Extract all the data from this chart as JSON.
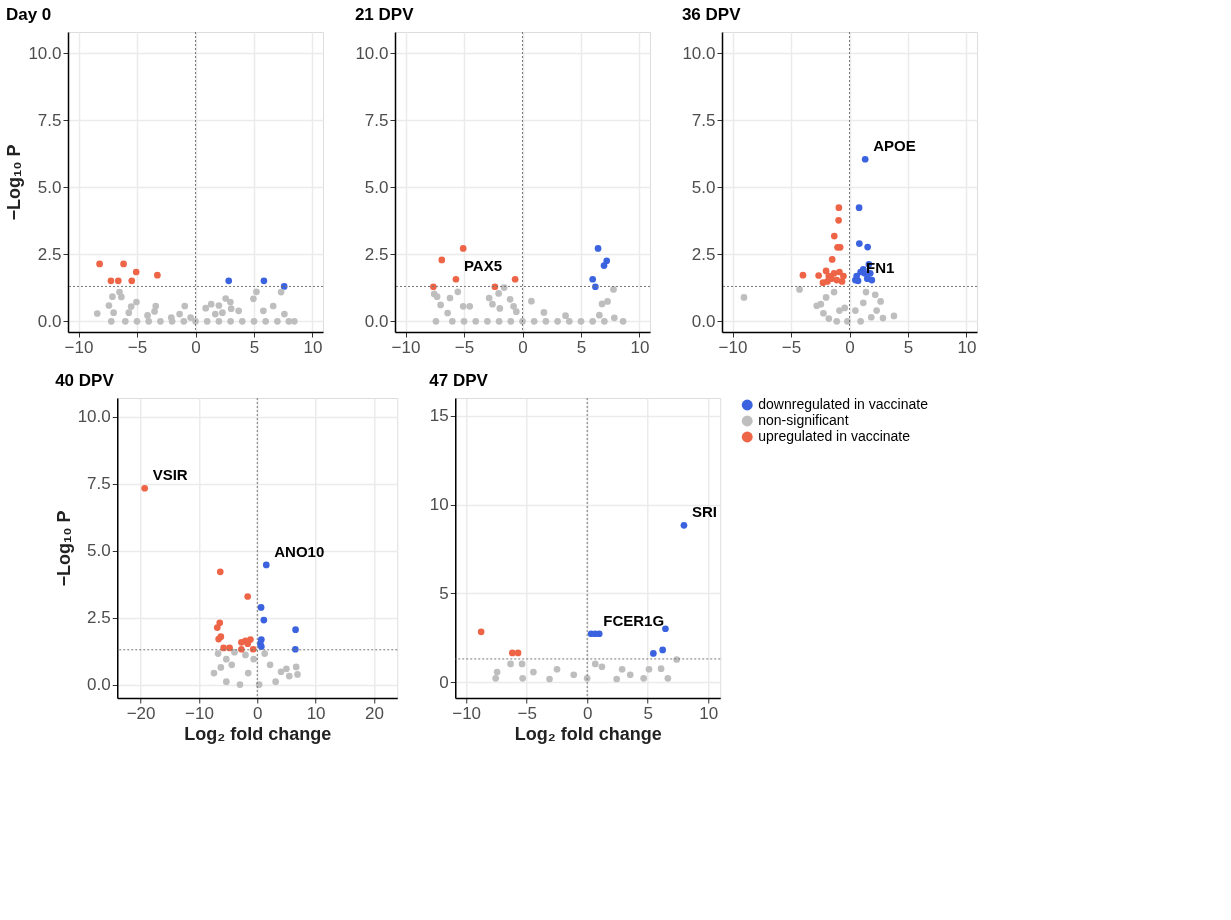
{
  "chart_data": [
    {
      "type": "scatter",
      "title": "Day 0",
      "ylabel": "−Log₁₀ P",
      "xlim": [
        -10.9,
        10.9
      ],
      "ylim": [
        -0.4,
        10.8
      ],
      "xticks": [
        -10,
        -5,
        0,
        5,
        10
      ],
      "yticks": [
        {
          "value": 0,
          "label": "0.0"
        },
        {
          "value": 2.5,
          "label": "2.5"
        },
        {
          "value": 5,
          "label": "5.0"
        },
        {
          "value": 7.5,
          "label": "7.5"
        },
        {
          "value": 10,
          "label": "10.0"
        }
      ],
      "grid": true,
      "legend": false,
      "marker": "circle",
      "ref_lines": [
        {
          "axis": "x",
          "value": 0,
          "label": null,
          "color": "#777777",
          "line_style": "dotted"
        },
        {
          "axis": "y",
          "value": 1.3,
          "label": null,
          "color": "#777777",
          "line_style": "dotted"
        }
      ],
      "series": [
        {
          "color": "#3b63e0",
          "x": [
            2.84,
            5.85,
            7.58
          ],
          "values": [
            1.51,
            1.51,
            1.3
          ]
        },
        {
          "color": "#bebebe",
          "x": [
            -8.4,
            -7.1,
            -6.5,
            -6.34,
            -7.4,
            -7.0,
            -5.5,
            -5.05,
            -5.7,
            -3.4,
            -3.5,
            -4.1,
            -2.07,
            -0.92,
            -1.36,
            -0.42,
            0.87,
            1.34,
            2.0,
            2.58,
            2.98,
            2.3,
            3.05,
            3.69,
            1.69,
            4.95,
            5.21,
            5.8,
            6.64,
            7.32,
            7.6,
            7.98,
            8.45,
            -7.2,
            -6,
            -5,
            -4,
            -3,
            -2,
            -1,
            0,
            1,
            2,
            3,
            4,
            5,
            6,
            7
          ],
          "values": [
            0.29,
            0.92,
            1.09,
            0.91,
            0.59,
            0.32,
            0.55,
            0.72,
            0.32,
            0.57,
            0.37,
            0.22,
            0.14,
            0.57,
            0.27,
            0.14,
            0.49,
            0.64,
            0.59,
            0.85,
            0.72,
            0.32,
            0.47,
            0.39,
            0.27,
            0.84,
            1.1,
            0.39,
            0.57,
            1.09,
            0.27,
            0,
            0,
            0,
            0,
            0,
            0,
            0,
            0,
            0,
            0,
            0,
            0,
            0,
            0,
            0,
            0,
            0
          ]
        },
        {
          "color": "#ee6447",
          "x": [
            -8.2,
            -6.15,
            -5.07,
            -3.26,
            -7.23,
            -6.6,
            -5.45
          ],
          "values": [
            2.14,
            2.14,
            1.84,
            1.72,
            1.51,
            1.51,
            1.51
          ]
        }
      ]
    },
    {
      "type": "scatter",
      "title": "21 DPV",
      "xlim": [
        -10.9,
        10.9
      ],
      "ylim": [
        -0.4,
        10.8
      ],
      "xticks": [
        -10,
        -5,
        0,
        5,
        10
      ],
      "yticks": [
        {
          "value": 0,
          "label": "0.0"
        },
        {
          "value": 2.5,
          "label": "2.5"
        },
        {
          "value": 5,
          "label": "5.0"
        },
        {
          "value": 7.5,
          "label": "7.5"
        },
        {
          "value": 10,
          "label": "10.0"
        }
      ],
      "grid": true,
      "legend": false,
      "marker": "circle",
      "ref_lines": [
        {
          "axis": "x",
          "value": 0,
          "label": null,
          "color": "#777777",
          "line_style": "dotted"
        },
        {
          "axis": "y",
          "value": 1.3,
          "label": null,
          "color": "#777777",
          "line_style": "dotted"
        }
      ],
      "annotations": [
        {
          "text": "PAX5",
          "x": -5.69,
          "y": 1.57
        }
      ],
      "series": [
        {
          "color": "#3b63e0",
          "x": [
            6.46,
            7.2,
            6.97,
            6.0,
            6.23
          ],
          "values": [
            2.72,
            2.26,
            2.08,
            1.57,
            1.29
          ]
        },
        {
          "color": "#bebebe",
          "x": [
            -7.55,
            -7.3,
            -7.0,
            -6.2,
            -5.53,
            -5.07,
            -4.51,
            -6.4,
            -1.57,
            -2.04,
            -2.85,
            -2.57,
            -1.06,
            -0.76,
            -0.53,
            -1.94,
            0.76,
            1.83,
            3.68,
            7.78,
            7.27,
            6.8,
            6.57,
            7.85,
            8.6,
            -7.4,
            -6,
            -5,
            -4,
            -3,
            -2,
            -1,
            0,
            1,
            2,
            3,
            4,
            5,
            6,
            7
          ],
          "values": [
            1.02,
            0.92,
            0.61,
            0.87,
            1.1,
            0.56,
            0.56,
            0.31,
            1.26,
            1.04,
            0.87,
            0.64,
            0.82,
            0.56,
            0.36,
            0.48,
            0.75,
            0.33,
            0.21,
            1.19,
            0.74,
            0.65,
            0.23,
            0.13,
            0,
            0,
            0,
            0,
            0,
            0,
            0,
            0,
            0,
            0,
            0,
            0,
            0,
            0,
            0,
            0
          ]
        },
        {
          "color": "#ee6447",
          "x": [
            -5.07,
            -6.9,
            -5.69,
            -7.62,
            -2.36,
            -0.63
          ],
          "values": [
            2.72,
            2.29,
            1.57,
            1.29,
            1.29,
            1.57
          ]
        }
      ]
    },
    {
      "type": "scatter",
      "title": "36 DPV",
      "xlim": [
        -10.9,
        10.9
      ],
      "ylim": [
        -0.4,
        10.8
      ],
      "xticks": [
        -10,
        -5,
        0,
        5,
        10
      ],
      "yticks": [
        {
          "value": 0,
          "label": "0.0"
        },
        {
          "value": 2.5,
          "label": "2.5"
        },
        {
          "value": 5,
          "label": "5.0"
        },
        {
          "value": 7.5,
          "label": "7.5"
        },
        {
          "value": 10,
          "label": "10.0"
        }
      ],
      "grid": true,
      "legend": false,
      "marker": "circle",
      "ref_lines": [
        {
          "axis": "x",
          "value": 0,
          "label": null,
          "color": "#777777",
          "line_style": "dotted"
        },
        {
          "axis": "y",
          "value": 1.3,
          "label": null,
          "color": "#777777",
          "line_style": "dotted"
        }
      ],
      "annotations": [
        {
          "text": "APOE",
          "x": 1.34,
          "y": 6.05
        },
        {
          "text": "FN1",
          "x": 0.73,
          "y": 1.51
        }
      ],
      "series": [
        {
          "color": "#3b63e0",
          "x": [
            1.34,
            0.82,
            0.84,
            1.55,
            1.66,
            1.77,
            1.91,
            0.61,
            0.95,
            1.3,
            0.5,
            1.52,
            1.18,
            0.73
          ],
          "values": [
            6.05,
            4.24,
            2.9,
            2.77,
            2.13,
            1.79,
            1.54,
            1.69,
            1.84,
            1.79,
            1.54,
            1.59,
            1.94,
            1.51
          ]
        },
        {
          "color": "#bebebe",
          "x": [
            -9.02,
            -4.27,
            -2.8,
            -2.45,
            -2.23,
            -1.77,
            -1.09,
            -0.18,
            0.95,
            1.86,
            2.32,
            2.66,
            2.2,
            1.41,
            -1.32,
            -2.0,
            -0.41,
            0.5,
            2.86,
            3.8,
            -0.86,
            1.18
          ],
          "values": [
            0.89,
            1.19,
            0.58,
            0.64,
            0.3,
            0.1,
            0,
            0,
            0,
            0.15,
            0.4,
            0.74,
            0.99,
            1.09,
            1.09,
            0.89,
            0.5,
            0.4,
            0.12,
            0.2,
            0.4,
            0.69
          ]
        },
        {
          "color": "#ee6447",
          "x": [
            -0.91,
            -0.93,
            -1.3,
            -1.02,
            -0.8,
            -1.48,
            -3.98,
            -2.64,
            -2.27,
            -2.0,
            -1.77,
            -1.32,
            -0.86,
            -0.52,
            -1.89,
            -1.09,
            -0.64,
            -1.55
          ],
          "values": [
            4.24,
            3.77,
            3.18,
            2.76,
            2.76,
            2.31,
            1.72,
            1.71,
            1.44,
            1.88,
            1.69,
            1.79,
            1.84,
            1.69,
            1.49,
            1.54,
            1.49,
            1.59
          ]
        }
      ]
    },
    {
      "type": "scatter",
      "title": "40 DPV",
      "xlabel": "Log₂ fold change",
      "ylabel": "−Log₁₀ P",
      "xlim": [
        -24,
        24
      ],
      "ylim": [
        -0.5,
        10.7
      ],
      "xticks": [
        -20,
        -10,
        0,
        10,
        20
      ],
      "yticks": [
        {
          "value": 0,
          "label": "0.0"
        },
        {
          "value": 2.5,
          "label": "2.5"
        },
        {
          "value": 5,
          "label": "5.0"
        },
        {
          "value": 7.5,
          "label": "7.5"
        },
        {
          "value": 10,
          "label": "10.0"
        }
      ],
      "grid": true,
      "legend": false,
      "marker": "circle",
      "ref_lines": [
        {
          "axis": "x",
          "value": 0,
          "label": null,
          "color": "#777777",
          "line_style": "dotted"
        },
        {
          "axis": "y",
          "value": 1.3,
          "label": null,
          "color": "#777777",
          "line_style": "dotted"
        }
      ],
      "annotations": [
        {
          "text": "VSIR",
          "x": -19.3,
          "y": 7.33
        },
        {
          "text": "ANO10",
          "x": 1.55,
          "y": 4.47
        }
      ],
      "series": [
        {
          "color": "#3b63e0",
          "x": [
            1.55,
            0.66,
            1.13,
            6.57,
            6.53,
            0.7,
            0.52,
            0.7
          ],
          "values": [
            4.47,
            2.88,
            2.41,
            2.05,
            1.32,
            1.68,
            1.53,
            1.42
          ]
        },
        {
          "color": "#bebebe",
          "x": [
            -6.71,
            -7.42,
            -5.3,
            -2.96,
            0.33,
            3.15,
            5.49,
            6.9,
            6.67,
            5.0,
            1.27,
            -2.02,
            -3.9,
            -5.3,
            -6.24,
            -4.37,
            -0.61,
            2.2,
            4.08,
            -1.55
          ],
          "values": [
            1.16,
            0.43,
            0.11,
            0,
            0,
            0.11,
            0.32,
            0.38,
            0.66,
            0.59,
            1.16,
            1.11,
            1.21,
            0.95,
            0.64,
            0.74,
            0.95,
            0.74,
            0.48,
            0.43
          ]
        },
        {
          "color": "#ee6447",
          "x": [
            -19.3,
            -6.34,
            -1.64,
            -6.43,
            -6.85,
            -6.24,
            -6.62,
            -5.77,
            -4.74,
            -2.72,
            -2.02,
            -1.17,
            -1.64,
            -2.72,
            -0.7
          ],
          "values": [
            7.33,
            4.21,
            3.29,
            2.31,
            2.13,
            1.79,
            1.7,
            1.37,
            1.37,
            1.58,
            1.63,
            1.68,
            1.53,
            1.32,
            1.32
          ]
        }
      ]
    },
    {
      "type": "scatter",
      "title": "47 DPV",
      "xlabel": "Log₂ fold change",
      "xlim": [
        -10.9,
        11
      ],
      "ylim": [
        -0.9,
        16
      ],
      "xticks": [
        -10,
        -5,
        0,
        5,
        10
      ],
      "yticks": [
        0,
        5,
        10,
        15
      ],
      "grid": true,
      "legend": "right",
      "marker": "circle",
      "ref_lines": [
        {
          "axis": "x",
          "value": 0,
          "label": null,
          "color": "#777777",
          "line_style": "dotted"
        },
        {
          "axis": "y",
          "value": 1.3,
          "label": null,
          "color": "#777777",
          "line_style": "dotted"
        }
      ],
      "annotations": [
        {
          "text": "SRI",
          "x": 8.0,
          "y": 8.83
        },
        {
          "text": "FCER1G",
          "x": 0.67,
          "y": 2.72
        }
      ],
      "series": [
        {
          "name": "downregulated in vaccinate",
          "color": "#3b63e0",
          "x": [
            8.0,
            0.33,
            0.67,
            1.0,
            6.47,
            6.24,
            5.47
          ],
          "values": [
            8.83,
            2.72,
            2.72,
            2.72,
            3.0,
            1.81,
            1.61
          ]
        },
        {
          "name": "non-significant",
          "color": "#bebebe",
          "x": [
            7.4,
            -7.44,
            -7.56,
            -6.33,
            -5.38,
            -4.44,
            -2.49,
            -1.11,
            0,
            0.67,
            1.22,
            2.89,
            3.56,
            5.11,
            6.11,
            6.67,
            -3.11,
            -5.33,
            2.44,
            4.67
          ],
          "values": [
            1.27,
            0.56,
            0.21,
            1.02,
            1.02,
            0.56,
            0.72,
            0.41,
            0.21,
            1.02,
            0.86,
            0.72,
            0.41,
            0.72,
            0.75,
            0.21,
            0.17,
            0.21,
            0.17,
            0.21
          ]
        },
        {
          "name": "upregulated in vaccinate",
          "color": "#ee6447",
          "x": [
            -8.76,
            -6.18,
            -5.71
          ],
          "values": [
            2.83,
            1.64,
            1.64
          ]
        }
      ]
    }
  ]
}
